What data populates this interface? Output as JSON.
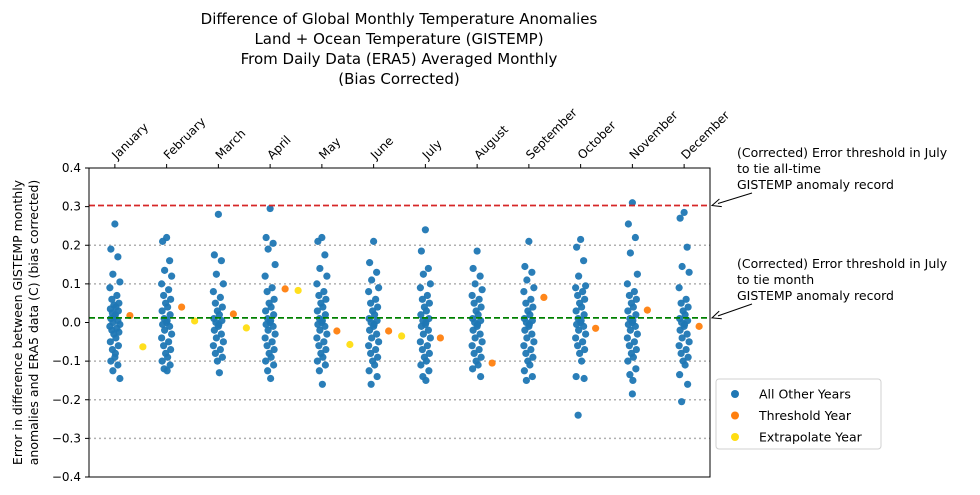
{
  "chart_data": {
    "type": "scatter",
    "title_lines": [
      "Difference of Global Monthly Temperature Anomalies",
      "Land + Ocean Temperature (GISTEMP)",
      "From Daily Data (ERA5) Averaged Monthly",
      "(Bias Corrected)"
    ],
    "categories": [
      "January",
      "February",
      "March",
      "April",
      "May",
      "June",
      "July",
      "August",
      "September",
      "October",
      "November",
      "December"
    ],
    "ylabel_lines": [
      "Error in difference between GISTEMP monthly",
      "anomalies and ERA5 data (C) (bias corrected)"
    ],
    "ylim": [
      -0.4,
      0.4
    ],
    "yticks": [
      -0.4,
      -0.3,
      -0.2,
      -0.1,
      0.0,
      0.1,
      0.2,
      0.3,
      0.4
    ],
    "ytick_labels": [
      "−0.4",
      "−0.3",
      "−0.2",
      "−0.1",
      "0.0",
      "0.1",
      "0.2",
      "0.3",
      "0.4"
    ],
    "gridlines_y": [
      -0.3,
      -0.2,
      -0.1,
      0.1,
      0.2
    ],
    "threshold_lines": [
      {
        "y": 0.303,
        "color": "#d62728",
        "annotation_lines": [
          "(Corrected) Error threshold in July",
          " to tie all-time",
          " GISTEMP anomaly record"
        ]
      },
      {
        "y": 0.012,
        "color": "#008000",
        "annotation_lines": [
          "(Corrected) Error threshold in July",
          " to tie month",
          " GISTEMP anomaly record"
        ]
      }
    ],
    "legend": {
      "placement": "lower-right-outside",
      "entries": [
        {
          "label": "All Other Years",
          "color": "#1f77b4"
        },
        {
          "label": "Threshold Year",
          "color": "#ff7f0e"
        },
        {
          "label": "Extrapolate Year",
          "color": "#ffdd11"
        }
      ]
    },
    "series": [
      {
        "name": "All Other Years",
        "color": "#1f77b4",
        "values": [
          [
            0.255,
            0.19,
            0.17,
            0.125,
            0.105,
            0.09,
            0.07,
            0.06,
            0.05,
            0.045,
            0.04,
            0.035,
            0.03,
            0.025,
            0.02,
            0.015,
            0.01,
            0.005,
            0.0,
            -0.005,
            -0.01,
            -0.015,
            -0.02,
            -0.025,
            -0.03,
            -0.04,
            -0.05,
            -0.06,
            -0.07,
            -0.08,
            -0.09,
            -0.1,
            -0.11,
            -0.125,
            -0.145
          ],
          [
            0.22,
            0.21,
            0.16,
            0.135,
            0.12,
            0.1,
            0.085,
            0.07,
            0.06,
            0.05,
            0.04,
            0.03,
            0.02,
            0.01,
            0.005,
            0.0,
            -0.005,
            -0.01,
            -0.02,
            -0.03,
            -0.04,
            -0.05,
            -0.06,
            -0.07,
            -0.08,
            -0.09,
            -0.1,
            -0.11,
            -0.12,
            -0.125
          ],
          [
            0.28,
            0.175,
            0.16,
            0.125,
            0.1,
            0.08,
            0.065,
            0.05,
            0.04,
            0.03,
            0.02,
            0.01,
            0.005,
            0.0,
            -0.005,
            -0.01,
            -0.02,
            -0.03,
            -0.04,
            -0.05,
            -0.06,
            -0.07,
            -0.08,
            -0.09,
            -0.1,
            -0.13
          ],
          [
            0.295,
            0.22,
            0.205,
            0.19,
            0.15,
            0.12,
            0.09,
            0.08,
            0.06,
            0.05,
            0.04,
            0.03,
            0.02,
            0.01,
            0.005,
            0.0,
            -0.005,
            -0.01,
            -0.02,
            -0.03,
            -0.04,
            -0.05,
            -0.06,
            -0.07,
            -0.08,
            -0.09,
            -0.1,
            -0.11,
            -0.125,
            -0.145
          ],
          [
            0.22,
            0.21,
            0.175,
            0.14,
            0.12,
            0.1,
            0.08,
            0.07,
            0.06,
            0.05,
            0.04,
            0.03,
            0.02,
            0.01,
            0.005,
            0.0,
            -0.005,
            -0.01,
            -0.02,
            -0.03,
            -0.04,
            -0.05,
            -0.06,
            -0.07,
            -0.08,
            -0.09,
            -0.1,
            -0.11,
            -0.125,
            -0.16
          ],
          [
            0.21,
            0.155,
            0.13,
            0.11,
            0.09,
            0.08,
            0.06,
            0.05,
            0.04,
            0.03,
            0.02,
            0.01,
            0.005,
            0.0,
            -0.005,
            -0.01,
            -0.02,
            -0.03,
            -0.04,
            -0.05,
            -0.06,
            -0.07,
            -0.08,
            -0.09,
            -0.1,
            -0.11,
            -0.125,
            -0.14,
            -0.16
          ],
          [
            0.24,
            0.185,
            0.14,
            0.125,
            0.1,
            0.09,
            0.07,
            0.06,
            0.05,
            0.04,
            0.03,
            0.02,
            0.01,
            0.005,
            0.0,
            -0.005,
            -0.01,
            -0.02,
            -0.03,
            -0.04,
            -0.05,
            -0.06,
            -0.07,
            -0.08,
            -0.09,
            -0.1,
            -0.11,
            -0.125,
            -0.14,
            -0.15
          ],
          [
            0.185,
            0.14,
            0.12,
            0.1,
            0.085,
            0.07,
            0.06,
            0.05,
            0.04,
            0.03,
            0.02,
            0.01,
            0.005,
            0.0,
            -0.005,
            -0.01,
            -0.02,
            -0.03,
            -0.04,
            -0.05,
            -0.06,
            -0.07,
            -0.08,
            -0.09,
            -0.1,
            -0.11,
            -0.12,
            -0.14
          ],
          [
            0.21,
            0.145,
            0.13,
            0.11,
            0.09,
            0.08,
            0.06,
            0.05,
            0.04,
            0.03,
            0.02,
            0.01,
            0.005,
            0.0,
            -0.005,
            -0.01,
            -0.02,
            -0.03,
            -0.04,
            -0.05,
            -0.06,
            -0.07,
            -0.08,
            -0.09,
            -0.1,
            -0.11,
            -0.125,
            -0.14,
            -0.15
          ],
          [
            0.215,
            0.195,
            0.16,
            0.12,
            0.095,
            0.09,
            0.08,
            0.07,
            0.06,
            0.05,
            0.04,
            0.03,
            0.02,
            0.01,
            0.005,
            0.0,
            -0.005,
            -0.01,
            -0.02,
            -0.03,
            -0.04,
            -0.05,
            -0.06,
            -0.07,
            -0.08,
            -0.1,
            -0.14,
            -0.145,
            -0.24
          ],
          [
            0.31,
            0.255,
            0.22,
            0.18,
            0.125,
            0.1,
            0.08,
            0.07,
            0.06,
            0.05,
            0.04,
            0.03,
            0.02,
            0.01,
            0.005,
            0.0,
            -0.005,
            -0.01,
            -0.02,
            -0.03,
            -0.04,
            -0.05,
            -0.06,
            -0.07,
            -0.08,
            -0.09,
            -0.1,
            -0.12,
            -0.135,
            -0.15,
            -0.185
          ],
          [
            0.285,
            0.27,
            0.195,
            0.145,
            0.13,
            0.09,
            0.06,
            0.05,
            0.04,
            0.03,
            0.02,
            0.01,
            0.005,
            0.0,
            -0.005,
            -0.01,
            -0.02,
            -0.03,
            -0.04,
            -0.05,
            -0.06,
            -0.07,
            -0.08,
            -0.09,
            -0.1,
            -0.11,
            -0.135,
            -0.16,
            -0.205
          ]
        ]
      },
      {
        "name": "Threshold Year",
        "color": "#ff7f0e",
        "values": [
          0.018,
          0.04,
          0.022,
          0.087,
          -0.022,
          -0.022,
          -0.04,
          -0.105,
          0.065,
          -0.015,
          0.032,
          -0.01
        ]
      },
      {
        "name": "Extrapolate Year",
        "color": "#ffdd11",
        "values": [
          -0.063,
          0.004,
          -0.014,
          0.083,
          -0.057,
          -0.035,
          null,
          null,
          null,
          null,
          null,
          null
        ]
      }
    ]
  }
}
